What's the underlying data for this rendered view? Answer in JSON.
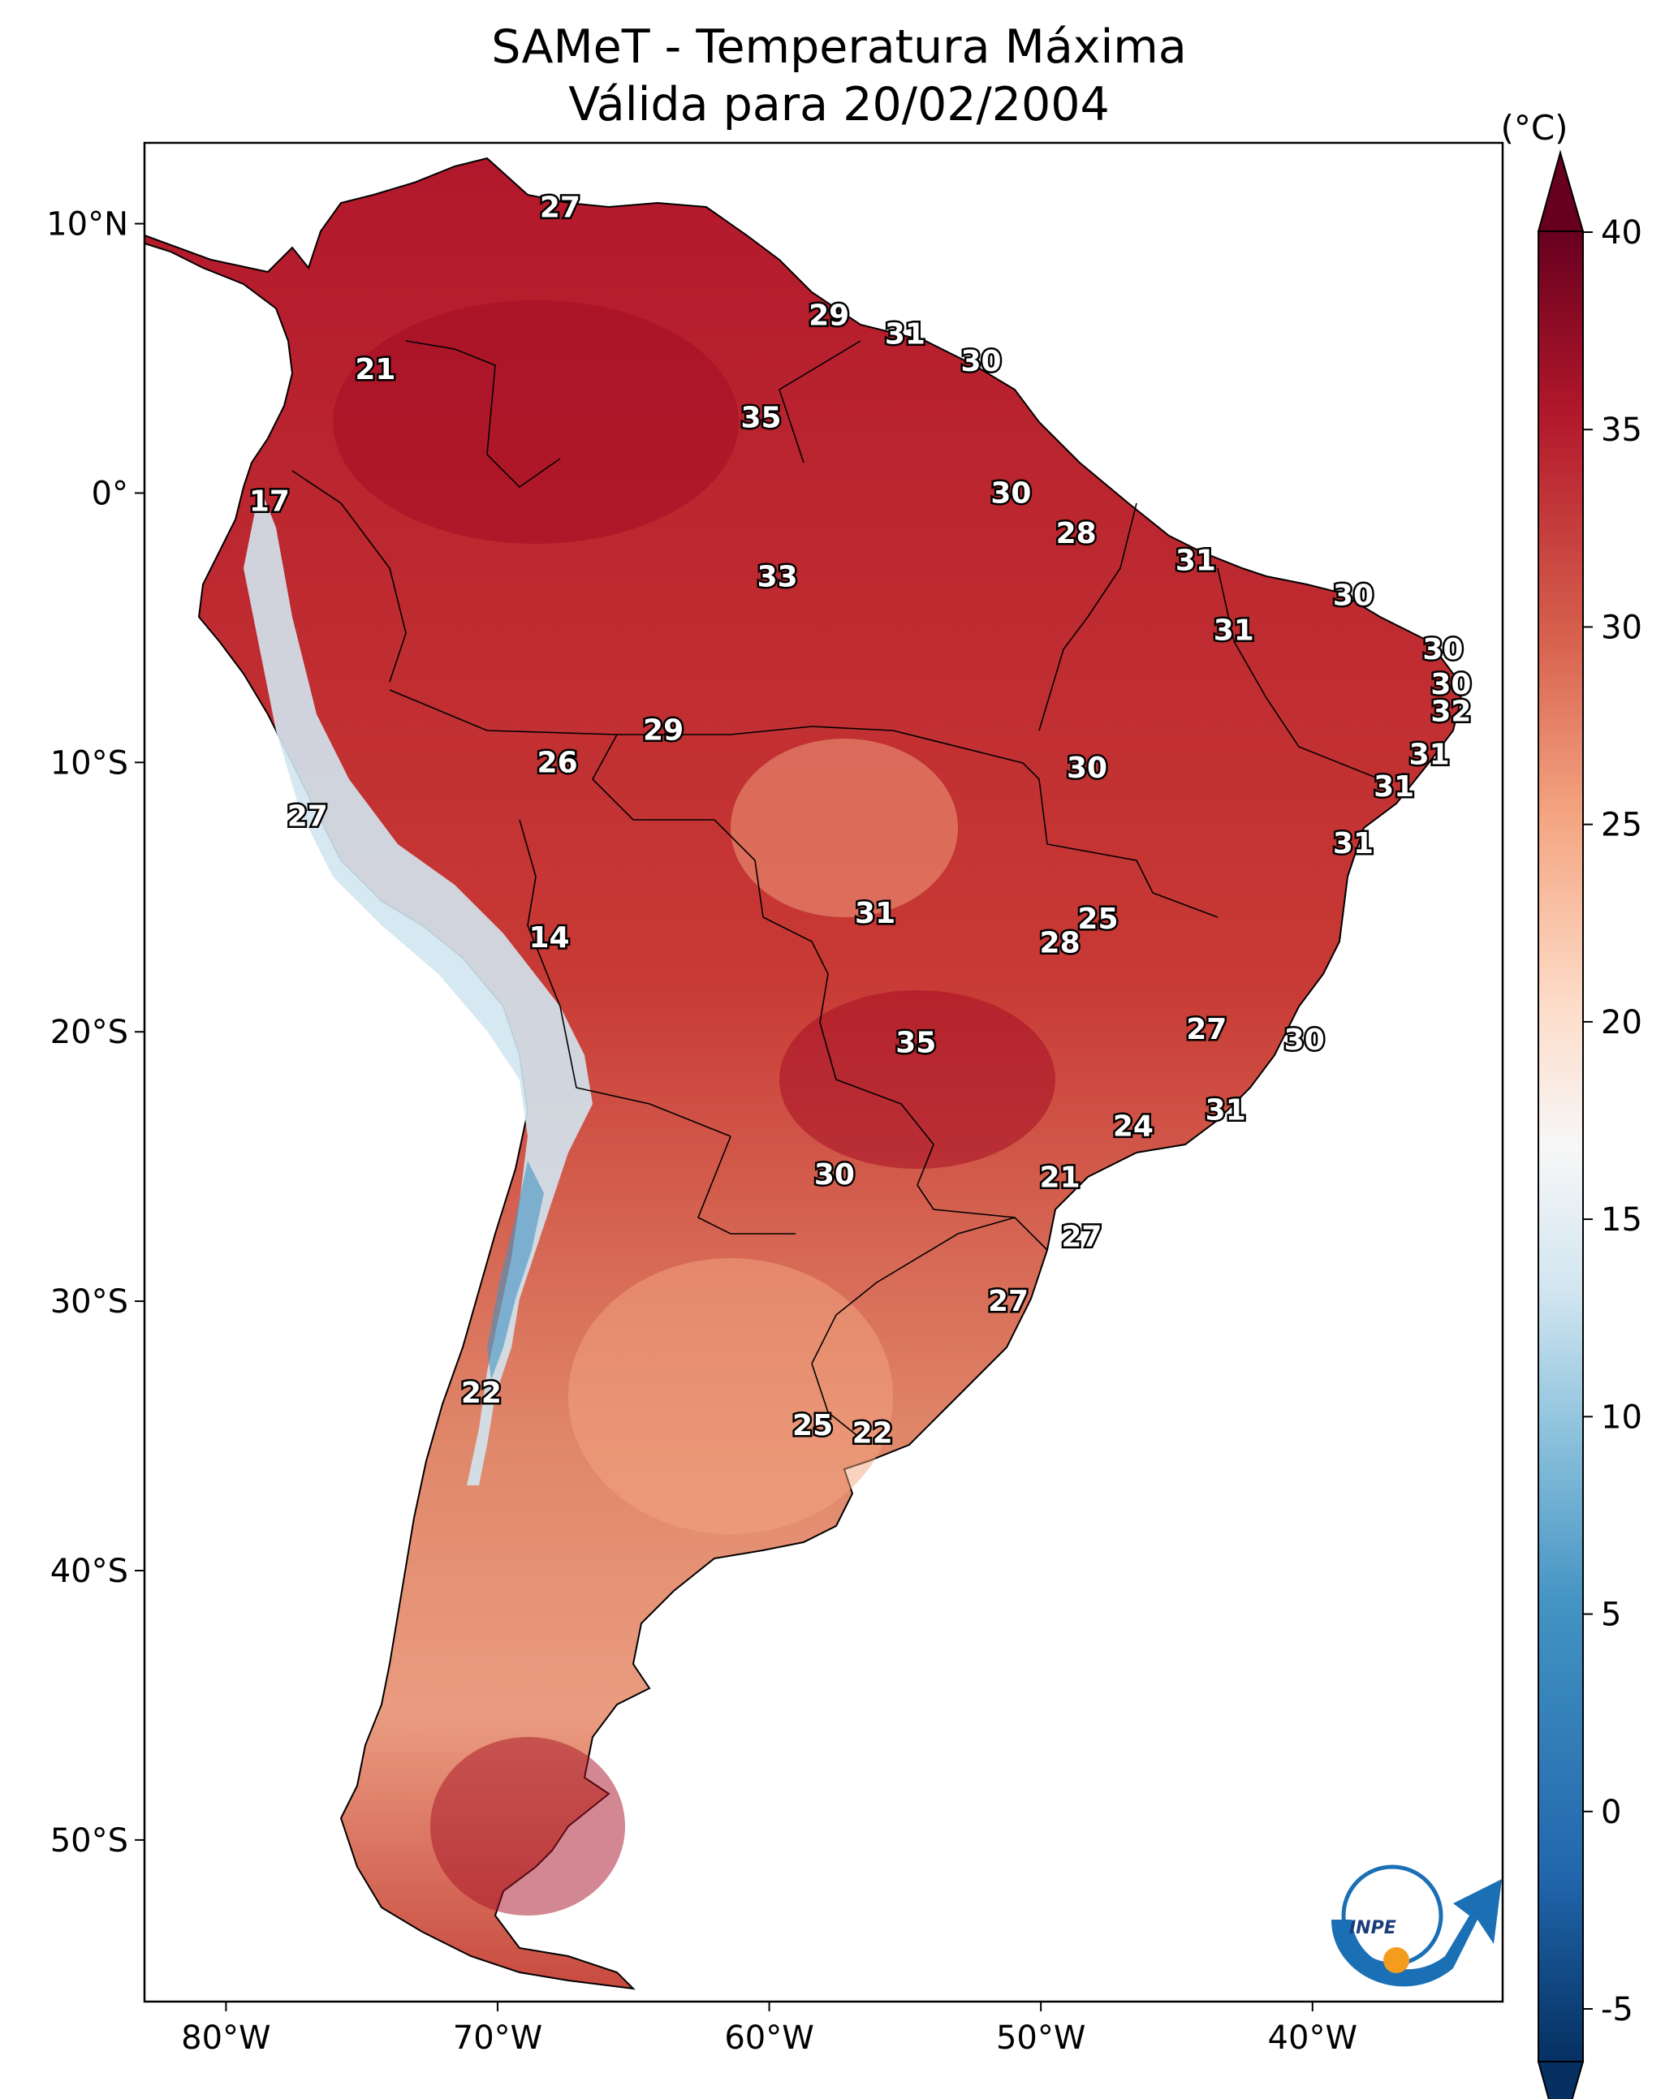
{
  "title": {
    "line1": "SAMeT - Temperatura Máxima",
    "line2": "Válida para 20/02/2004"
  },
  "map": {
    "lat_range": [
      -56,
      13
    ],
    "lon_range": [
      -83,
      -33
    ],
    "lat_ticks": [
      {
        "value": 10,
        "label": "10°N"
      },
      {
        "value": 0,
        "label": "0°"
      },
      {
        "value": -10,
        "label": "10°S"
      },
      {
        "value": -20,
        "label": "20°S"
      },
      {
        "value": -30,
        "label": "30°S"
      },
      {
        "value": -40,
        "label": "40°S"
      },
      {
        "value": -50,
        "label": "50°S"
      }
    ],
    "lon_ticks": [
      {
        "value": -80,
        "label": "80°W"
      },
      {
        "value": -70,
        "label": "70°W"
      },
      {
        "value": -60,
        "label": "60°W"
      },
      {
        "value": -50,
        "label": "50°W"
      },
      {
        "value": -40,
        "label": "40°W"
      }
    ],
    "station_values": [
      {
        "lon": -67.7,
        "lat": 10.6,
        "value": "27"
      },
      {
        "lon": -57.8,
        "lat": 6.6,
        "value": "29"
      },
      {
        "lon": -55.0,
        "lat": 5.9,
        "value": "31"
      },
      {
        "lon": -52.2,
        "lat": 4.9,
        "value": "30"
      },
      {
        "lon": -74.5,
        "lat": 4.6,
        "value": "21"
      },
      {
        "lon": -60.3,
        "lat": 2.8,
        "value": "35"
      },
      {
        "lon": -51.1,
        "lat": 0.0,
        "value": "30"
      },
      {
        "lon": -78.4,
        "lat": -0.3,
        "value": "17"
      },
      {
        "lon": -48.7,
        "lat": -1.5,
        "value": "28"
      },
      {
        "lon": -44.3,
        "lat": -2.5,
        "value": "31"
      },
      {
        "lon": -59.7,
        "lat": -3.1,
        "value": "33"
      },
      {
        "lon": -38.5,
        "lat": -3.8,
        "value": "30"
      },
      {
        "lon": -42.9,
        "lat": -5.1,
        "value": "31"
      },
      {
        "lon": -35.2,
        "lat": -5.8,
        "value": "30"
      },
      {
        "lon": -34.9,
        "lat": -7.1,
        "value": "30"
      },
      {
        "lon": -34.9,
        "lat": -8.1,
        "value": "32"
      },
      {
        "lon": -63.9,
        "lat": -8.8,
        "value": "29"
      },
      {
        "lon": -35.7,
        "lat": -9.7,
        "value": "31"
      },
      {
        "lon": -67.8,
        "lat": -10.0,
        "value": "26"
      },
      {
        "lon": -48.3,
        "lat": -10.2,
        "value": "30"
      },
      {
        "lon": -37.0,
        "lat": -10.9,
        "value": "31"
      },
      {
        "lon": -77.0,
        "lat": -12.0,
        "value": "27"
      },
      {
        "lon": -38.5,
        "lat": -13.0,
        "value": "31"
      },
      {
        "lon": -56.1,
        "lat": -15.6,
        "value": "31"
      },
      {
        "lon": -47.9,
        "lat": -15.8,
        "value": "25"
      },
      {
        "lon": -49.3,
        "lat": -16.7,
        "value": "28"
      },
      {
        "lon": -68.1,
        "lat": -16.5,
        "value": "14"
      },
      {
        "lon": -43.9,
        "lat": -19.9,
        "value": "27"
      },
      {
        "lon": -40.3,
        "lat": -20.3,
        "value": "30"
      },
      {
        "lon": -54.6,
        "lat": -20.4,
        "value": "35"
      },
      {
        "lon": -43.2,
        "lat": -22.9,
        "value": "31"
      },
      {
        "lon": -46.6,
        "lat": -23.5,
        "value": "24"
      },
      {
        "lon": -57.6,
        "lat": -25.3,
        "value": "30"
      },
      {
        "lon": -49.3,
        "lat": -25.4,
        "value": "21"
      },
      {
        "lon": -48.5,
        "lat": -27.6,
        "value": "27"
      },
      {
        "lon": -51.2,
        "lat": -30.0,
        "value": "27"
      },
      {
        "lon": -70.6,
        "lat": -33.4,
        "value": "22"
      },
      {
        "lon": -58.4,
        "lat": -34.6,
        "value": "25"
      },
      {
        "lon": -56.2,
        "lat": -34.9,
        "value": "22"
      }
    ]
  },
  "colorbar": {
    "unit": "(°C)",
    "min": -5,
    "max": 40,
    "ticks": [
      {
        "value": 40,
        "label": "40"
      },
      {
        "value": 35,
        "label": "35"
      },
      {
        "value": 30,
        "label": "30"
      },
      {
        "value": 25,
        "label": "25"
      },
      {
        "value": 20,
        "label": "20"
      },
      {
        "value": 15,
        "label": "15"
      },
      {
        "value": 10,
        "label": "10"
      },
      {
        "value": 5,
        "label": "5"
      },
      {
        "value": 0,
        "label": "0"
      },
      {
        "value": -5,
        "label": "-5"
      }
    ],
    "colors": [
      "#053061",
      "#2166ac",
      "#4393c3",
      "#92c5de",
      "#d1e5f0",
      "#f7f7f7",
      "#fddbc7",
      "#f4a582",
      "#d6604d",
      "#b2182b",
      "#67001f"
    ]
  },
  "logo": {
    "text": "INPE"
  }
}
